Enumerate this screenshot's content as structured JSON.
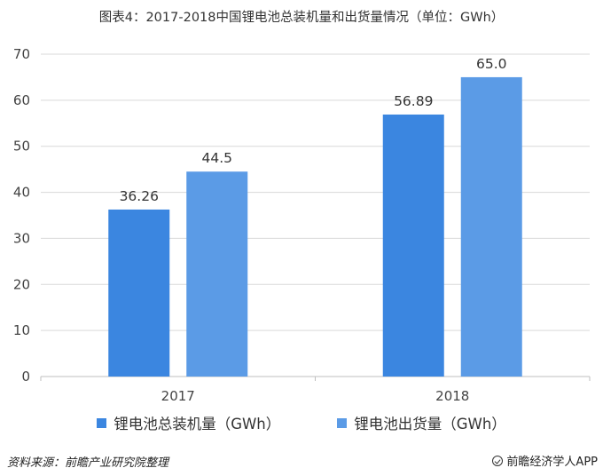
{
  "chart_data": {
    "type": "bar",
    "title": "图表4：2017-2018中国锂电池总装机量和出货量情况（单位：GWh）",
    "categories": [
      "2017",
      "2018"
    ],
    "series": [
      {
        "name": "锂电池总装机量（GWh）",
        "values": [
          36.26,
          56.89
        ],
        "labels": [
          "36.26",
          "56.89"
        ],
        "color": "#3b86e0"
      },
      {
        "name": "锂电池出货量（GWh）",
        "values": [
          44.5,
          65.0
        ],
        "labels": [
          "44.5",
          "65.0"
        ],
        "color": "#5b9be6"
      }
    ],
    "ylim": [
      0,
      70
    ],
    "yticks": [
      0,
      10,
      20,
      30,
      40,
      50,
      60,
      70
    ],
    "xlabel": "",
    "ylabel": "",
    "grid": true,
    "legend_position": "bottom"
  },
  "footer": {
    "source": "资料来源：前瞻产业研究院整理",
    "brand": "前瞻经济学人APP"
  }
}
